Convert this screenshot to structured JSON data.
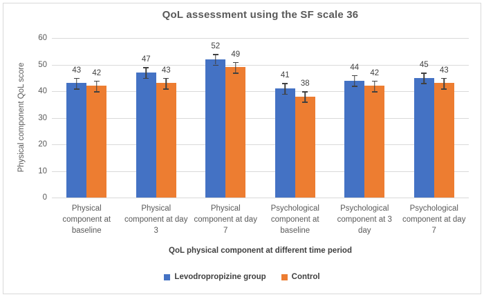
{
  "chart_data": {
    "type": "bar",
    "title": "QoL assessment using the SF scale 36",
    "xlabel": "QoL physical component at different time period",
    "ylabel": "Physical component QoL score",
    "ylim": [
      0,
      60
    ],
    "yticks": [
      0,
      10,
      20,
      30,
      40,
      50,
      60
    ],
    "grid": true,
    "legend_position": "bottom",
    "error_bar": 2,
    "categories": [
      "Physical component at baseline",
      "Physical component at day 3",
      "Physical component at day 7",
      "Psychological component at baseline",
      "Psychological component at 3 day",
      "Psychological component at day 7"
    ],
    "series": [
      {
        "name": "Levodropropizine group",
        "color": "#4472C4",
        "values": [
          43,
          47,
          52,
          41,
          44,
          45
        ]
      },
      {
        "name": "Control",
        "color": "#ED7D31",
        "values": [
          42,
          43,
          49,
          38,
          42,
          43
        ]
      }
    ],
    "colors": {
      "grid": "#d9d9d9",
      "axis_text": "#595959",
      "data_label": "#404040",
      "error_bar": "#404040",
      "border": "#d9d9d9",
      "background": "#ffffff"
    }
  }
}
